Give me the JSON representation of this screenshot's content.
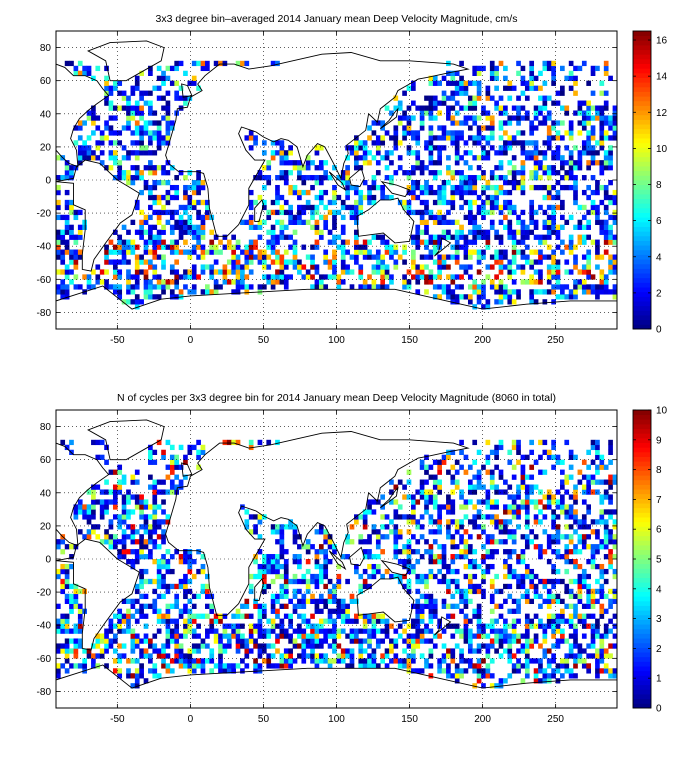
{
  "chart_data": [
    {
      "type": "heatmap",
      "title": "3x3 degree bin–averaged 2014 January mean Deep Velocity Magnitude, cm/s",
      "xlabel": "",
      "ylabel": "",
      "xlim": [
        -92,
        292
      ],
      "ylim": [
        -90,
        90
      ],
      "x_ticks": [
        "-50",
        "0",
        "50",
        "100",
        "150",
        "200",
        "250"
      ],
      "x_tick_values": [
        -50,
        0,
        50,
        100,
        150,
        200,
        250
      ],
      "y_ticks": [
        "80",
        "60",
        "40",
        "20",
        "0",
        "-20",
        "-40",
        "-60",
        "-80"
      ],
      "y_tick_values": [
        80,
        60,
        40,
        20,
        0,
        -20,
        -40,
        -60,
        -80
      ],
      "grid": "dotted",
      "bin_size_deg": 3,
      "colorbar": {
        "min": 0,
        "max": 16.5,
        "ticks": [
          "0",
          "2",
          "4",
          "6",
          "8",
          "10",
          "12",
          "14",
          "16"
        ],
        "tick_values": [
          0,
          2,
          4,
          6,
          8,
          10,
          12,
          14,
          16
        ]
      },
      "seed": 20140101
    },
    {
      "type": "heatmap",
      "title": "N of cycles per 3x3 degree bin for 2014 January mean Deep Velocity Magnitude (8060 in total)",
      "xlabel": "",
      "ylabel": "",
      "xlim": [
        -92,
        292
      ],
      "ylim": [
        -90,
        90
      ],
      "x_ticks": [
        "-50",
        "0",
        "50",
        "100",
        "150",
        "200",
        "250"
      ],
      "x_tick_values": [
        -50,
        0,
        50,
        100,
        150,
        200,
        250
      ],
      "y_ticks": [
        "80",
        "60",
        "40",
        "20",
        "0",
        "-20",
        "-40",
        "-60",
        "-80"
      ],
      "y_tick_values": [
        80,
        60,
        40,
        20,
        0,
        -20,
        -40,
        -60,
        -80
      ],
      "grid": "dotted",
      "bin_size_deg": 3,
      "colorbar": {
        "min": 0,
        "max": 10,
        "ticks": [
          "0",
          "1",
          "2",
          "3",
          "4",
          "5",
          "6",
          "7",
          "8",
          "9",
          "10"
        ],
        "tick_values": [
          0,
          1,
          2,
          3,
          4,
          5,
          6,
          7,
          8,
          9,
          10
        ]
      },
      "seed": 8060
    }
  ]
}
